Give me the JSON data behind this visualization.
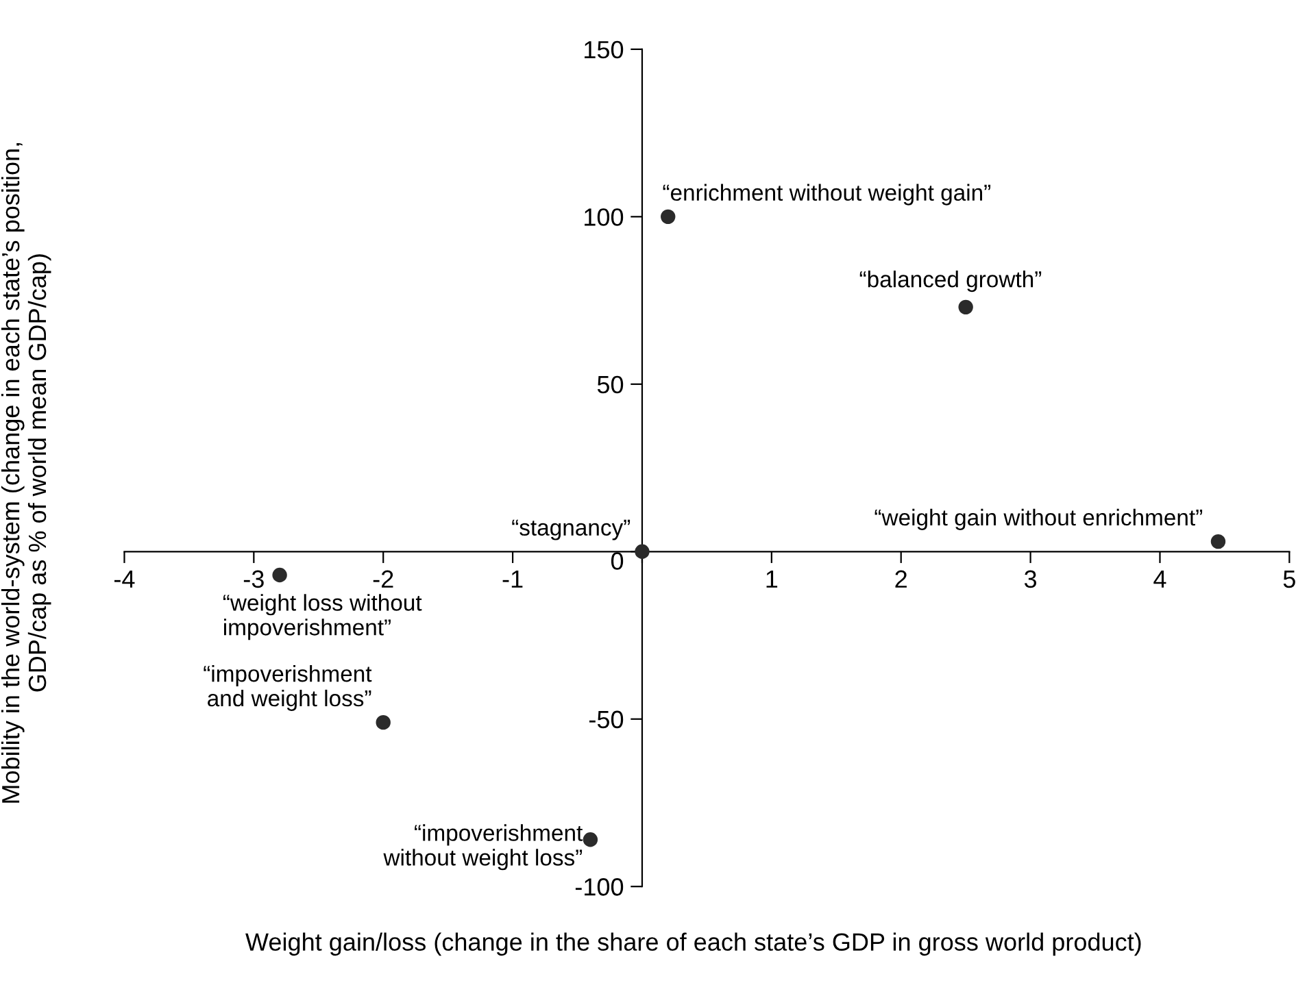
{
  "chart_data": {
    "type": "scatter",
    "xlabel": "Weight gain/loss (change in the share of each state’s GDP in gross world product)",
    "ylabel": "Mobility in the world-system (change in each state’s position,\nGDP/cap as % of world mean GDP/cap)",
    "x": [
      0.2,
      2.5,
      4.45,
      0,
      -2.8,
      -2,
      -0.4
    ],
    "series": [
      {
        "color": "#2b2b2b",
        "values": [
          100,
          73,
          3,
          0,
          -7,
          -51,
          -86
        ]
      }
    ],
    "marker": "circle",
    "xlim": [
      -4,
      5
    ],
    "ylim": [
      -100,
      150
    ],
    "xticks": [
      -4,
      -3,
      -2,
      -1,
      {
        "value": 0,
        "label": null
      },
      1,
      2,
      3,
      4,
      5
    ],
    "yticks": [
      -100,
      -50,
      0,
      50,
      100,
      150
    ],
    "grid": false,
    "legend": false,
    "annotations": [
      {
        "text": "“enrichment without weight gain”",
        "x": 0.2,
        "y": 100
      },
      {
        "text": "“balanced growth”",
        "x": 2.5,
        "y": 73
      },
      {
        "text": "“weight gain without enrichment”",
        "x": 4.45,
        "y": 3
      },
      {
        "text": "“stagnancy”",
        "x": 0,
        "y": 0
      },
      {
        "text": "“weight loss without\nimpoverishment”",
        "x": -2.8,
        "y": -7
      },
      {
        "text": "“impoverishment\nand weight loss”",
        "x": -2,
        "y": -51
      },
      {
        "text": "“impoverishment\nwithout weight loss”",
        "x": -0.4,
        "y": -86
      }
    ]
  }
}
